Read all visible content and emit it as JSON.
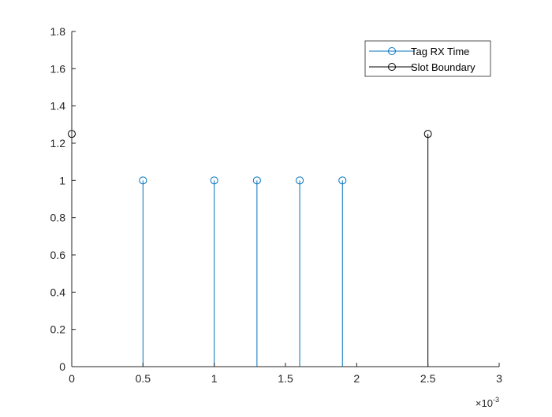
{
  "chart_data": {
    "type": "stem",
    "xlim": [
      0,
      0.003
    ],
    "ylim": [
      0,
      1.8
    ],
    "x_ticks": [
      0,
      0.0005,
      0.001,
      0.0015,
      0.002,
      0.0025,
      0.003
    ],
    "x_tick_labels": [
      "0",
      "0.5",
      "1",
      "1.5",
      "2",
      "2.5",
      "3"
    ],
    "x_exponent_base": "×10",
    "x_exponent_power": "-3",
    "y_ticks": [
      0,
      0.2,
      0.4,
      0.6,
      0.8,
      1,
      1.2,
      1.4,
      1.6,
      1.8
    ],
    "y_tick_labels": [
      "0",
      "0.2",
      "0.4",
      "0.6",
      "0.8",
      "1",
      "1.2",
      "1.4",
      "1.6",
      "1.8"
    ],
    "grid": false,
    "legend_position": "top-right",
    "series": [
      {
        "name": "Tag RX Time",
        "color": "#0072BD",
        "marker": "circle",
        "points": [
          {
            "x": 0.0005,
            "y": 1
          },
          {
            "x": 0.001,
            "y": 1
          },
          {
            "x": 0.0013,
            "y": 1
          },
          {
            "x": 0.0016,
            "y": 1
          },
          {
            "x": 0.0019,
            "y": 1
          }
        ]
      },
      {
        "name": "Slot Boundary",
        "color": "#000000",
        "marker": "circle",
        "points": [
          {
            "x": 0,
            "y": 1.25
          },
          {
            "x": 0.0025,
            "y": 1.25
          }
        ]
      }
    ]
  }
}
